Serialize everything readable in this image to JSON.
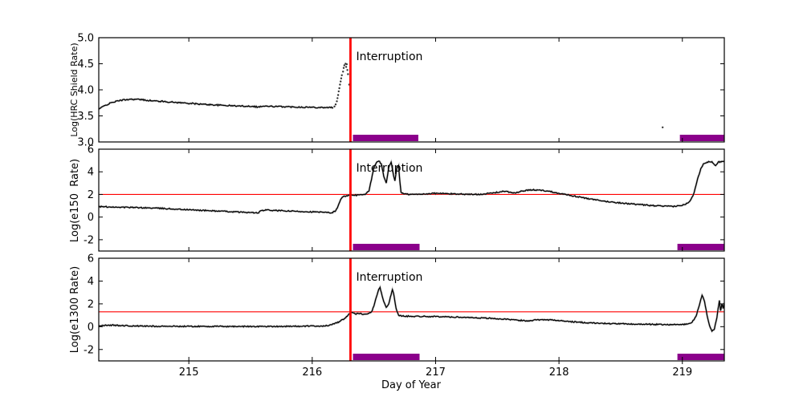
{
  "chart_data": {
    "type": "line",
    "title": "",
    "xlabel": "Day of Year",
    "xlim": [
      214.27,
      219.34
    ],
    "xticks": {
      "values": [
        215,
        216,
        217,
        218,
        219
      ],
      "labels": [
        "215",
        "216",
        "217",
        "218",
        "219"
      ]
    },
    "grid": false,
    "legend": "none",
    "vline": {
      "x": 216.31,
      "color": "#ff0000",
      "label": "Interruption",
      "label_color": "#ff1a1a"
    },
    "bar_color": "#8b008b",
    "line_color": "#000000",
    "shadow_color": "#999999",
    "panels": [
      {
        "ylabel": "Log(HRC Shield Rate)",
        "ylim": [
          3.0,
          5.0
        ],
        "yticks": {
          "values": [
            3.0,
            3.5,
            4.0,
            4.5,
            5.0
          ],
          "labels": [
            "3.0",
            "3.5",
            "4.0",
            "4.5",
            "5.0"
          ]
        },
        "hline": null,
        "bars": [
          [
            216.33,
            216.86
          ],
          [
            218.98,
            219.34
          ]
        ],
        "series": [
          {
            "name": "hrc-shield-main",
            "type": "line",
            "noise": 0.012,
            "points": [
              [
                214.27,
                3.63
              ],
              [
                214.32,
                3.7
              ],
              [
                214.38,
                3.76
              ],
              [
                214.45,
                3.8
              ],
              [
                214.52,
                3.82
              ],
              [
                214.6,
                3.815
              ],
              [
                214.7,
                3.79
              ],
              [
                214.8,
                3.775
              ],
              [
                214.95,
                3.75
              ],
              [
                215.1,
                3.725
              ],
              [
                215.25,
                3.705
              ],
              [
                215.4,
                3.69
              ],
              [
                215.52,
                3.685
              ],
              [
                215.56,
                3.67
              ],
              [
                215.6,
                3.685
              ],
              [
                215.7,
                3.68
              ],
              [
                215.85,
                3.672
              ],
              [
                216.0,
                3.665
              ],
              [
                216.1,
                3.662
              ],
              [
                216.17,
                3.66
              ]
            ]
          },
          {
            "name": "hrc-shield-rise",
            "type": "scatter",
            "points": [
              [
                216.18,
                3.68
              ],
              [
                216.19,
                3.72
              ],
              [
                216.2,
                3.78
              ],
              [
                216.205,
                3.84
              ],
              [
                216.21,
                3.9
              ],
              [
                216.215,
                3.97
              ],
              [
                216.22,
                4.03
              ],
              [
                216.225,
                4.1
              ],
              [
                216.23,
                4.16
              ],
              [
                216.235,
                4.22
              ],
              [
                216.24,
                4.28
              ],
              [
                216.25,
                4.35
              ],
              [
                216.255,
                4.42
              ],
              [
                216.26,
                4.47
              ],
              [
                216.27,
                4.5
              ],
              [
                216.275,
                4.44
              ],
              [
                216.28,
                4.49
              ],
              [
                216.285,
                4.38
              ],
              [
                216.29,
                4.3
              ],
              [
                216.3,
                4.1
              ]
            ]
          },
          {
            "name": "hrc-shield-stray-point",
            "type": "scatter",
            "points": [
              [
                218.84,
                3.28
              ]
            ]
          }
        ]
      },
      {
        "ylabel": "Log(e150  Rate)",
        "ylim": [
          -3,
          6
        ],
        "yticks": {
          "values": [
            -2,
            0,
            2,
            4,
            6
          ],
          "labels": [
            "-2",
            "0",
            "2",
            "4",
            "6"
          ]
        },
        "hline": 2.0,
        "bars": [
          [
            216.33,
            216.87
          ],
          [
            218.96,
            219.34
          ]
        ],
        "series": [
          {
            "name": "e150-main",
            "type": "line",
            "noise": 0.05,
            "points": [
              [
                214.27,
                0.92
              ],
              [
                214.35,
                0.9
              ],
              [
                214.45,
                0.87
              ],
              [
                214.6,
                0.83
              ],
              [
                214.75,
                0.78
              ],
              [
                214.9,
                0.7
              ],
              [
                215.05,
                0.62
              ],
              [
                215.2,
                0.55
              ],
              [
                215.35,
                0.47
              ],
              [
                215.5,
                0.4
              ],
              [
                215.56,
                0.36
              ],
              [
                215.59,
                0.58
              ],
              [
                215.63,
                0.62
              ],
              [
                215.7,
                0.58
              ],
              [
                215.8,
                0.53
              ],
              [
                215.95,
                0.48
              ],
              [
                216.05,
                0.44
              ],
              [
                216.12,
                0.4
              ],
              [
                216.16,
                0.38
              ],
              [
                216.19,
                0.55
              ],
              [
                216.21,
                1.0
              ],
              [
                216.23,
                1.55
              ],
              [
                216.25,
                1.8
              ],
              [
                216.28,
                1.9
              ],
              [
                216.33,
                1.92
              ],
              [
                216.38,
                1.95
              ],
              [
                216.43,
                2.0
              ],
              [
                216.46,
                2.3
              ],
              [
                216.48,
                3.3
              ],
              [
                216.5,
                4.4
              ],
              [
                216.52,
                4.8
              ],
              [
                216.54,
                4.95
              ],
              [
                216.56,
                4.7
              ],
              [
                216.58,
                3.6
              ],
              [
                216.6,
                3.0
              ],
              [
                216.62,
                4.4
              ],
              [
                216.64,
                4.85
              ],
              [
                216.655,
                3.9
              ],
              [
                216.67,
                3.2
              ],
              [
                216.685,
                4.3
              ],
              [
                216.7,
                4.55
              ],
              [
                216.71,
                3.2
              ],
              [
                216.72,
                2.2
              ],
              [
                216.74,
                2.05
              ],
              [
                216.8,
                2.0
              ],
              [
                216.88,
                2.02
              ],
              [
                216.95,
                2.08
              ],
              [
                217.02,
                2.1
              ],
              [
                217.1,
                2.06
              ],
              [
                217.18,
                2.04
              ],
              [
                217.25,
                2.02
              ],
              [
                217.32,
                2.0
              ],
              [
                217.4,
                2.05
              ],
              [
                217.48,
                2.15
              ],
              [
                217.55,
                2.28
              ],
              [
                217.6,
                2.2
              ],
              [
                217.65,
                2.12
              ],
              [
                217.7,
                2.3
              ],
              [
                217.78,
                2.4
              ],
              [
                217.85,
                2.38
              ],
              [
                217.92,
                2.28
              ],
              [
                218.0,
                2.1
              ],
              [
                218.08,
                1.95
              ],
              [
                218.15,
                1.8
              ],
              [
                218.25,
                1.6
              ],
              [
                218.35,
                1.42
              ],
              [
                218.45,
                1.3
              ],
              [
                218.55,
                1.2
              ],
              [
                218.65,
                1.1
              ],
              [
                218.75,
                1.02
              ],
              [
                218.85,
                0.96
              ],
              [
                218.92,
                0.94
              ],
              [
                218.98,
                1.0
              ],
              [
                219.02,
                1.1
              ],
              [
                219.06,
                1.4
              ],
              [
                219.09,
                2.0
              ],
              [
                219.11,
                2.8
              ],
              [
                219.13,
                3.6
              ],
              [
                219.15,
                4.3
              ],
              [
                219.17,
                4.7
              ],
              [
                219.2,
                4.85
              ],
              [
                219.24,
                4.9
              ],
              [
                219.27,
                4.55
              ],
              [
                219.29,
                4.85
              ],
              [
                219.32,
                4.92
              ],
              [
                219.34,
                4.95
              ]
            ]
          }
        ]
      },
      {
        "ylabel": "Log(e1300 Rate)",
        "ylim": [
          -3,
          6
        ],
        "yticks": {
          "values": [
            -2,
            0,
            2,
            4,
            6
          ],
          "labels": [
            "-2",
            "0",
            "2",
            "4",
            "6"
          ]
        },
        "hline": 1.3,
        "bars": [
          [
            216.33,
            216.87
          ],
          [
            218.96,
            219.34
          ]
        ],
        "series": [
          {
            "name": "e1300-main",
            "type": "line",
            "noise": 0.05,
            "points": [
              [
                214.27,
                0.08
              ],
              [
                214.35,
                0.14
              ],
              [
                214.45,
                0.1
              ],
              [
                214.6,
                0.05
              ],
              [
                214.8,
                0.04
              ],
              [
                215.0,
                0.03
              ],
              [
                215.3,
                0.02
              ],
              [
                215.6,
                0.02
              ],
              [
                215.9,
                0.04
              ],
              [
                216.05,
                0.06
              ],
              [
                216.12,
                0.08
              ],
              [
                216.18,
                0.25
              ],
              [
                216.22,
                0.45
              ],
              [
                216.26,
                0.7
              ],
              [
                216.29,
                1.0
              ],
              [
                216.31,
                1.2
              ],
              [
                216.33,
                1.22
              ],
              [
                216.35,
                1.1
              ],
              [
                216.37,
                1.18
              ],
              [
                216.4,
                1.12
              ],
              [
                216.43,
                1.1
              ],
              [
                216.45,
                1.12
              ],
              [
                216.48,
                1.3
              ],
              [
                216.5,
                1.8
              ],
              [
                216.52,
                2.6
              ],
              [
                216.54,
                3.3
              ],
              [
                216.55,
                3.45
              ],
              [
                216.56,
                3.0
              ],
              [
                216.58,
                2.2
              ],
              [
                216.6,
                1.7
              ],
              [
                216.62,
                2.0
              ],
              [
                216.64,
                2.8
              ],
              [
                216.65,
                3.25
              ],
              [
                216.66,
                2.9
              ],
              [
                216.67,
                2.2
              ],
              [
                216.68,
                1.6
              ],
              [
                216.7,
                1.0
              ],
              [
                216.73,
                0.93
              ],
              [
                216.8,
                0.92
              ],
              [
                216.9,
                0.9
              ],
              [
                217.0,
                0.88
              ],
              [
                217.1,
                0.86
              ],
              [
                217.2,
                0.83
              ],
              [
                217.3,
                0.8
              ],
              [
                217.4,
                0.76
              ],
              [
                217.5,
                0.7
              ],
              [
                217.6,
                0.62
              ],
              [
                217.68,
                0.55
              ],
              [
                217.75,
                0.52
              ],
              [
                217.82,
                0.6
              ],
              [
                217.88,
                0.63
              ],
              [
                217.95,
                0.58
              ],
              [
                218.05,
                0.48
              ],
              [
                218.15,
                0.4
              ],
              [
                218.25,
                0.33
              ],
              [
                218.4,
                0.27
              ],
              [
                218.55,
                0.24
              ],
              [
                218.7,
                0.21
              ],
              [
                218.85,
                0.19
              ],
              [
                218.98,
                0.18
              ],
              [
                219.04,
                0.22
              ],
              [
                219.08,
                0.4
              ],
              [
                219.11,
                0.9
              ],
              [
                219.13,
                1.6
              ],
              [
                219.15,
                2.4
              ],
              [
                219.16,
                2.75
              ],
              [
                219.18,
                2.2
              ],
              [
                219.2,
                1.0
              ],
              [
                219.22,
                0.1
              ],
              [
                219.24,
                -0.4
              ],
              [
                219.26,
                -0.2
              ],
              [
                219.28,
                0.8
              ],
              [
                219.29,
                1.6
              ],
              [
                219.3,
                2.3
              ],
              [
                219.31,
                1.4
              ],
              [
                219.32,
                2.0
              ],
              [
                219.33,
                1.6
              ],
              [
                219.34,
                2.1
              ]
            ]
          }
        ]
      }
    ]
  }
}
